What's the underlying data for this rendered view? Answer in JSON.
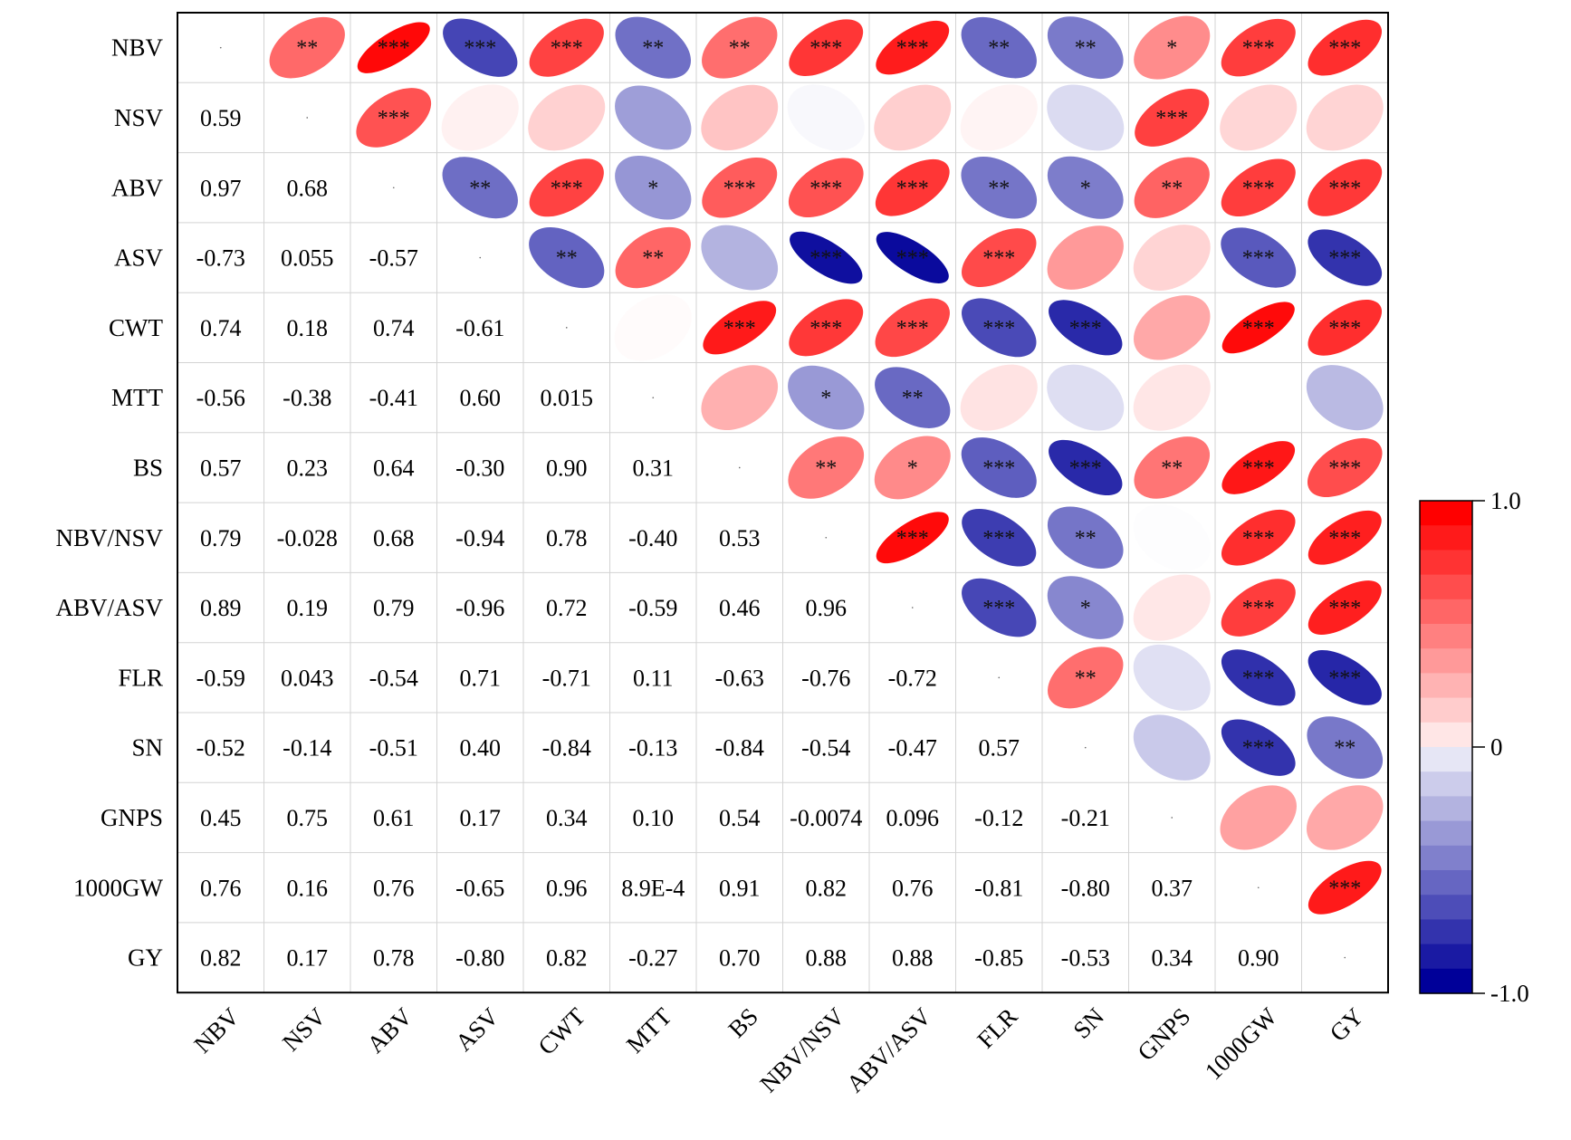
{
  "chart_data": {
    "type": "heatmap",
    "title": "",
    "variables": [
      "NBV",
      "NSV",
      "ABV",
      "ASV",
      "CWT",
      "MTT",
      "BS",
      "NBV/NSV",
      "ABV/ASV",
      "FLR",
      "SN",
      "GNPS",
      "1000GW",
      "GY"
    ],
    "lower_triangle_labels": [
      [],
      [
        "0.59"
      ],
      [
        "0.97",
        "0.68"
      ],
      [
        "-0.73",
        "0.055",
        "-0.57"
      ],
      [
        "0.74",
        "0.18",
        "0.74",
        "-0.61"
      ],
      [
        "-0.56",
        "-0.38",
        "-0.41",
        "0.60",
        "0.015"
      ],
      [
        "0.57",
        "0.23",
        "0.64",
        "-0.30",
        "0.90",
        "0.31"
      ],
      [
        "0.79",
        "-0.028",
        "0.68",
        "-0.94",
        "0.78",
        "-0.40",
        "0.53"
      ],
      [
        "0.89",
        "0.19",
        "0.79",
        "-0.96",
        "0.72",
        "-0.59",
        "0.46",
        "0.96"
      ],
      [
        "-0.59",
        "0.043",
        "-0.54",
        "0.71",
        "-0.71",
        "0.11",
        "-0.63",
        "-0.76",
        "-0.72"
      ],
      [
        "-0.52",
        "-0.14",
        "-0.51",
        "0.40",
        "-0.84",
        "-0.13",
        "-0.84",
        "-0.54",
        "-0.47",
        "0.57"
      ],
      [
        "0.45",
        "0.75",
        "0.61",
        "0.17",
        "0.34",
        "0.10",
        "0.54",
        "-0.0074",
        "0.096",
        "-0.12",
        "-0.21"
      ],
      [
        "0.76",
        "0.16",
        "0.76",
        "-0.65",
        "0.96",
        "8.9E-4",
        "0.91",
        "0.82",
        "0.76",
        "-0.81",
        "-0.80",
        "0.37"
      ],
      [
        "0.82",
        "0.17",
        "0.78",
        "-0.80",
        "0.82",
        "-0.27",
        "0.70",
        "0.88",
        "0.88",
        "-0.85",
        "-0.53",
        "0.34",
        "0.90"
      ]
    ],
    "significance_upper": [
      [
        "",
        "**",
        "***",
        "***",
        "***",
        "**",
        "**",
        "***",
        "***",
        "**",
        "**",
        "*",
        "***",
        "***"
      ],
      [
        "",
        "",
        "***",
        "",
        "",
        "",
        "",
        "",
        "",
        "",
        "",
        "***",
        "",
        ""
      ],
      [
        "",
        "",
        "",
        "**",
        "***",
        "*",
        "***",
        "***",
        "***",
        "**",
        "*",
        "**",
        "***",
        "***"
      ],
      [
        "",
        "",
        "",
        "",
        "**",
        "**",
        "",
        "***",
        "***",
        "***",
        "",
        "",
        "***",
        "***"
      ],
      [
        "",
        "",
        "",
        "",
        "",
        "",
        "***",
        "***",
        "***",
        "***",
        "***",
        "",
        "***",
        "***"
      ],
      [
        "",
        "",
        "",
        "",
        "",
        "",
        "",
        "*",
        "**",
        "",
        "",
        "",
        "",
        ""
      ],
      [
        "",
        "",
        "",
        "",
        "",
        "",
        "",
        "**",
        "*",
        "***",
        "***",
        "**",
        "***",
        "***"
      ],
      [
        "",
        "",
        "",
        "",
        "",
        "",
        "",
        "",
        "***",
        "***",
        "**",
        "",
        "***",
        "***"
      ],
      [
        "",
        "",
        "",
        "",
        "",
        "",
        "",
        "",
        "",
        "***",
        "*",
        "",
        "***",
        "***"
      ],
      [
        "",
        "",
        "",
        "",
        "",
        "",
        "",
        "",
        "",
        "",
        "**",
        "",
        "***",
        "***"
      ],
      [
        "",
        "",
        "",
        "",
        "",
        "",
        "",
        "",
        "",
        "",
        "",
        "",
        "***",
        "**"
      ],
      [
        "",
        "",
        "",
        "",
        "",
        "",
        "",
        "",
        "",
        "",
        "",
        "",
        "",
        ""
      ],
      [
        "",
        "",
        "",
        "",
        "",
        "",
        "",
        "",
        "",
        "",
        "",
        "",
        "",
        "***"
      ],
      [
        "",
        "",
        "",
        "",
        "",
        "",
        "",
        "",
        "",
        "",
        "",
        "",
        "",
        ""
      ]
    ],
    "colorbar": {
      "ticks": [
        "1.0",
        "0",
        "-1.0"
      ],
      "tick_values": [
        1.0,
        0,
        -1.0
      ],
      "range": [
        -1.0,
        1.0
      ],
      "levels": 20,
      "high_color": "#ff0000",
      "mid_color": "#ffffff",
      "low_color": "#000099"
    },
    "grid": true,
    "legend_placement": "right"
  }
}
